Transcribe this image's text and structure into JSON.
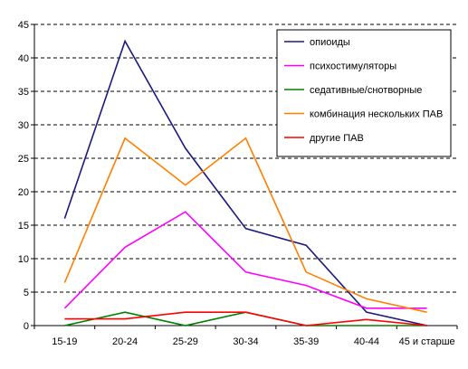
{
  "chart_data": {
    "type": "line",
    "title": "",
    "xlabel": "",
    "ylabel": "",
    "ylim": [
      0,
      45
    ],
    "yticks": [
      0,
      5,
      10,
      15,
      20,
      25,
      30,
      35,
      40,
      45
    ],
    "grid": "horizontal dashed",
    "legend_position": "top-right",
    "categories": [
      "15-19",
      "20-24",
      "25-29",
      "30-34",
      "35-39",
      "40-44",
      "45 и старше"
    ],
    "series": [
      {
        "name": "опиоиды",
        "color": "#1a1a80",
        "values": [
          16,
          42.5,
          26.5,
          14.5,
          12,
          2,
          0
        ]
      },
      {
        "name": "психостимуляторы",
        "color": "#ff00ff",
        "values": [
          2.6,
          11.7,
          17,
          8,
          6,
          2.6,
          2.6
        ]
      },
      {
        "name": "седативные/снотворные",
        "color": "#008000",
        "values": [
          0,
          2,
          0,
          2,
          0,
          0,
          0
        ]
      },
      {
        "name": "комбинация нескольких ПАВ",
        "color": "#ff8000",
        "values": [
          6.4,
          28,
          21,
          28,
          8,
          4,
          2
        ]
      },
      {
        "name": "другие ПАВ",
        "color": "#ff0000",
        "values": [
          1,
          1,
          2,
          2,
          0,
          0.9,
          0
        ]
      }
    ]
  }
}
